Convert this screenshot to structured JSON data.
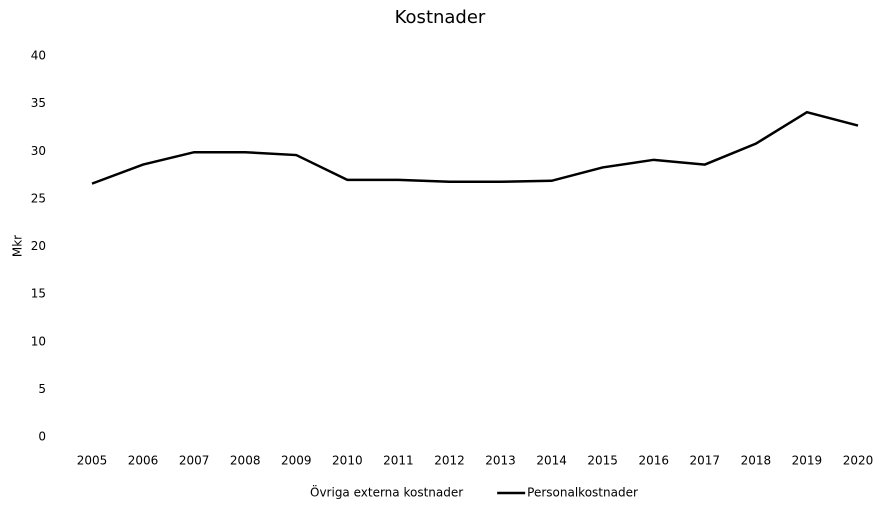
{
  "chart_data": {
    "type": "line",
    "title": "Kostnader",
    "y_label": "Mkr",
    "categories": [
      "2005",
      "2006",
      "2007",
      "2008",
      "2009",
      "2010",
      "2011",
      "2012",
      "2013",
      "2014",
      "2015",
      "2016",
      "2017",
      "2018",
      "2019",
      "2020"
    ],
    "series": [
      {
        "name": "Övriga externa kostnader",
        "color": "#ffffff",
        "values": [
          null,
          null,
          null,
          null,
          null,
          null,
          null,
          null,
          null,
          null,
          null,
          null,
          null,
          null,
          null,
          null
        ]
      },
      {
        "name": "Personalkostnader",
        "color": "#000000",
        "values": [
          26.6,
          28.6,
          29.9,
          29.9,
          29.6,
          27.0,
          27.0,
          26.8,
          26.8,
          26.9,
          28.3,
          29.1,
          28.6,
          30.8,
          34.1,
          32.7
        ]
      }
    ],
    "ylim": [
      0,
      40
    ],
    "yticks": [
      0,
      5,
      10,
      15,
      20,
      25,
      30,
      35,
      40
    ],
    "grid": false,
    "legend": "bottom"
  }
}
